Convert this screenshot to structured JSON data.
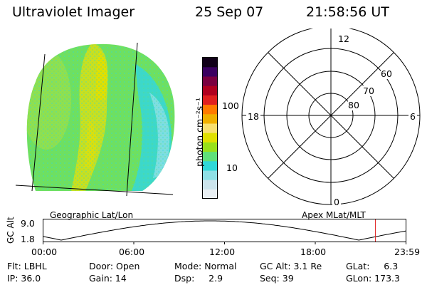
{
  "header": {
    "title": "Ultraviolet Imager",
    "date": "25 Sep 07",
    "time": "21:58:56 UT"
  },
  "colorbar": {
    "label": "photon cm⁻²s⁻¹",
    "ticks": [
      "100",
      "10"
    ],
    "colors": [
      "#eaf0f4",
      "#cbe4ec",
      "#8fe0e6",
      "#2ed8d8",
      "#5fe07a",
      "#98e01a",
      "#e0e000",
      "#f8e070",
      "#f0b000",
      "#ff7a00",
      "#e02020",
      "#b00020",
      "#7a0040",
      "#3a0060",
      "#100018"
    ]
  },
  "image_panel": {
    "label": "Geographic Lat/Lon"
  },
  "polar_panel": {
    "label": "Apex MLat/MLT",
    "mlt_labels": [
      "12",
      "18",
      "6",
      "0"
    ],
    "lat_labels": [
      "60",
      "70",
      "80"
    ]
  },
  "altitude_plot": {
    "ylabel": "GC Alt",
    "yticks": [
      "9.0",
      "1.8"
    ],
    "xticks": [
      "00:00",
      "06:00",
      "12:00",
      "18:00",
      "23:59"
    ],
    "marker_time_hours": 21.98,
    "marker_color": "#e02020"
  },
  "status": {
    "flt": "Flt: LBHL",
    "ip": "IP: 36.0",
    "door": "Door: Open",
    "gain": "Gain: 14",
    "mode": "Mode: Normal",
    "dsp": "Dsp:     2.9",
    "gc_alt": "GC Alt: 3.1 Re",
    "seq": "Seq: 39",
    "glat": "GLat:     6.3",
    "glon": "GLon: 173.3"
  }
}
